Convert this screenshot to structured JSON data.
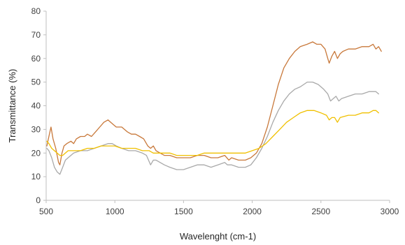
{
  "chart_data": {
    "type": "line",
    "title": "",
    "xlabel": "Wavelenght (cm-1)",
    "ylabel": "Transmittance (%)",
    "xlim": [
      500,
      3000
    ],
    "ylim": [
      0,
      80
    ],
    "x_ticks": [
      500,
      1000,
      1500,
      2000,
      2500,
      3000
    ],
    "y_ticks": [
      0,
      10,
      20,
      30,
      40,
      50,
      60,
      70,
      80
    ],
    "grid": false,
    "legend": "none",
    "series": [
      {
        "color": "#c8783a",
        "points": [
          [
            505,
            23
          ],
          [
            520,
            27
          ],
          [
            535,
            31
          ],
          [
            550,
            26
          ],
          [
            570,
            22
          ],
          [
            590,
            16
          ],
          [
            600,
            15
          ],
          [
            615,
            20
          ],
          [
            630,
            23
          ],
          [
            650,
            24
          ],
          [
            680,
            25
          ],
          [
            700,
            24
          ],
          [
            720,
            26
          ],
          [
            750,
            27
          ],
          [
            780,
            27
          ],
          [
            800,
            28
          ],
          [
            830,
            27
          ],
          [
            860,
            29
          ],
          [
            890,
            31
          ],
          [
            920,
            33
          ],
          [
            950,
            34
          ],
          [
            970,
            33
          ],
          [
            990,
            32
          ],
          [
            1010,
            31
          ],
          [
            1050,
            31
          ],
          [
            1090,
            29
          ],
          [
            1120,
            28
          ],
          [
            1150,
            28
          ],
          [
            1180,
            27
          ],
          [
            1210,
            26
          ],
          [
            1240,
            23
          ],
          [
            1260,
            22
          ],
          [
            1280,
            23
          ],
          [
            1300,
            21
          ],
          [
            1330,
            20
          ],
          [
            1360,
            19
          ],
          [
            1400,
            19
          ],
          [
            1450,
            18
          ],
          [
            1500,
            18
          ],
          [
            1550,
            18
          ],
          [
            1600,
            19
          ],
          [
            1650,
            19
          ],
          [
            1700,
            18
          ],
          [
            1750,
            18
          ],
          [
            1800,
            19
          ],
          [
            1830,
            17
          ],
          [
            1850,
            18
          ],
          [
            1900,
            17
          ],
          [
            1950,
            17
          ],
          [
            1990,
            18
          ],
          [
            2030,
            20
          ],
          [
            2070,
            24
          ],
          [
            2110,
            31
          ],
          [
            2150,
            40
          ],
          [
            2190,
            49
          ],
          [
            2230,
            56
          ],
          [
            2270,
            60
          ],
          [
            2310,
            63
          ],
          [
            2350,
            65
          ],
          [
            2400,
            66
          ],
          [
            2440,
            67
          ],
          [
            2470,
            66
          ],
          [
            2500,
            66
          ],
          [
            2530,
            64
          ],
          [
            2550,
            60
          ],
          [
            2560,
            58
          ],
          [
            2580,
            61
          ],
          [
            2600,
            63
          ],
          [
            2620,
            60
          ],
          [
            2640,
            62
          ],
          [
            2660,
            63
          ],
          [
            2700,
            64
          ],
          [
            2750,
            64
          ],
          [
            2800,
            65
          ],
          [
            2850,
            65
          ],
          [
            2880,
            66
          ],
          [
            2900,
            64
          ],
          [
            2920,
            65
          ],
          [
            2940,
            63
          ]
        ]
      },
      {
        "color": "#a9a9a9",
        "points": [
          [
            505,
            22
          ],
          [
            520,
            21
          ],
          [
            540,
            18
          ],
          [
            560,
            14
          ],
          [
            580,
            12
          ],
          [
            600,
            11
          ],
          [
            620,
            14
          ],
          [
            640,
            17
          ],
          [
            660,
            18
          ],
          [
            700,
            20
          ],
          [
            750,
            21
          ],
          [
            800,
            21
          ],
          [
            850,
            22
          ],
          [
            900,
            23
          ],
          [
            950,
            24
          ],
          [
            980,
            24
          ],
          [
            1010,
            23
          ],
          [
            1050,
            22
          ],
          [
            1100,
            21
          ],
          [
            1150,
            21
          ],
          [
            1200,
            20
          ],
          [
            1230,
            19
          ],
          [
            1260,
            15
          ],
          [
            1280,
            17
          ],
          [
            1300,
            17
          ],
          [
            1330,
            16
          ],
          [
            1360,
            15
          ],
          [
            1400,
            14
          ],
          [
            1450,
            13
          ],
          [
            1500,
            13
          ],
          [
            1550,
            14
          ],
          [
            1600,
            15
          ],
          [
            1650,
            15
          ],
          [
            1700,
            14
          ],
          [
            1750,
            15
          ],
          [
            1800,
            16
          ],
          [
            1820,
            15
          ],
          [
            1850,
            15
          ],
          [
            1900,
            14
          ],
          [
            1950,
            14
          ],
          [
            1990,
            15
          ],
          [
            2030,
            18
          ],
          [
            2070,
            22
          ],
          [
            2110,
            27
          ],
          [
            2150,
            33
          ],
          [
            2190,
            38
          ],
          [
            2230,
            42
          ],
          [
            2270,
            45
          ],
          [
            2310,
            47
          ],
          [
            2350,
            48
          ],
          [
            2400,
            50
          ],
          [
            2440,
            50
          ],
          [
            2480,
            49
          ],
          [
            2520,
            47
          ],
          [
            2550,
            45
          ],
          [
            2570,
            42
          ],
          [
            2590,
            43
          ],
          [
            2610,
            44
          ],
          [
            2630,
            42
          ],
          [
            2650,
            43
          ],
          [
            2700,
            44
          ],
          [
            2750,
            45
          ],
          [
            2800,
            45
          ],
          [
            2850,
            46
          ],
          [
            2880,
            46
          ],
          [
            2900,
            46
          ],
          [
            2920,
            45
          ]
        ]
      },
      {
        "color": "#f0c000",
        "points": [
          [
            505,
            25
          ],
          [
            520,
            24
          ],
          [
            540,
            22
          ],
          [
            560,
            21
          ],
          [
            580,
            20
          ],
          [
            600,
            19
          ],
          [
            620,
            19
          ],
          [
            640,
            20
          ],
          [
            660,
            21
          ],
          [
            700,
            21
          ],
          [
            750,
            21
          ],
          [
            800,
            22
          ],
          [
            850,
            22
          ],
          [
            900,
            23
          ],
          [
            950,
            23
          ],
          [
            1000,
            23
          ],
          [
            1050,
            22
          ],
          [
            1100,
            22
          ],
          [
            1150,
            22
          ],
          [
            1200,
            21
          ],
          [
            1250,
            21
          ],
          [
            1280,
            20
          ],
          [
            1300,
            20
          ],
          [
            1350,
            20
          ],
          [
            1400,
            20
          ],
          [
            1450,
            19
          ],
          [
            1500,
            19
          ],
          [
            1550,
            19
          ],
          [
            1600,
            19
          ],
          [
            1650,
            20
          ],
          [
            1700,
            20
          ],
          [
            1750,
            20
          ],
          [
            1800,
            20
          ],
          [
            1850,
            20
          ],
          [
            1900,
            20
          ],
          [
            1950,
            20
          ],
          [
            2000,
            21
          ],
          [
            2050,
            22
          ],
          [
            2100,
            24
          ],
          [
            2150,
            27
          ],
          [
            2200,
            30
          ],
          [
            2250,
            33
          ],
          [
            2300,
            35
          ],
          [
            2350,
            37
          ],
          [
            2400,
            38
          ],
          [
            2450,
            38
          ],
          [
            2500,
            37
          ],
          [
            2540,
            36
          ],
          [
            2560,
            34
          ],
          [
            2580,
            35
          ],
          [
            2600,
            35
          ],
          [
            2620,
            33
          ],
          [
            2640,
            35
          ],
          [
            2700,
            36
          ],
          [
            2750,
            36
          ],
          [
            2800,
            37
          ],
          [
            2850,
            37
          ],
          [
            2880,
            38
          ],
          [
            2900,
            38
          ],
          [
            2920,
            37
          ]
        ]
      }
    ]
  }
}
